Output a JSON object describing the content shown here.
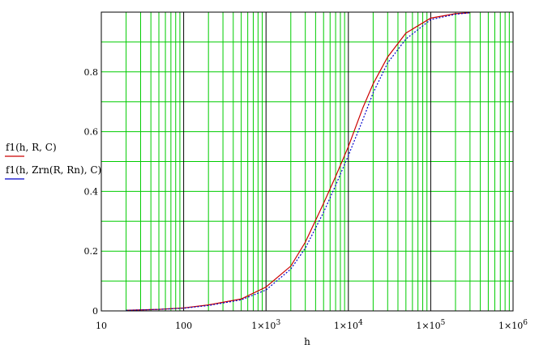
{
  "chart_data": {
    "type": "line",
    "xlabel": "h",
    "x_scale": "log",
    "xlim": [
      10,
      1000000
    ],
    "ylim": [
      0,
      1
    ],
    "grid": true,
    "x_ticks": [
      {
        "value": 10,
        "label": "10",
        "exp": ""
      },
      {
        "value": 100,
        "label": "100",
        "exp": ""
      },
      {
        "value": 1000,
        "label": "1×10",
        "exp": "3"
      },
      {
        "value": 10000,
        "label": "1×10",
        "exp": "4"
      },
      {
        "value": 100000,
        "label": "1×10",
        "exp": "5"
      },
      {
        "value": 1000000,
        "label": "1×10",
        "exp": "6"
      }
    ],
    "y_ticks": [
      {
        "value": 0,
        "label": "0"
      },
      {
        "value": 0.2,
        "label": "0.2"
      },
      {
        "value": 0.4,
        "label": "0.4"
      },
      {
        "value": 0.6,
        "label": "0.6"
      },
      {
        "value": 0.8,
        "label": "0.8"
      }
    ],
    "legend_placement": "left",
    "colors": {
      "grid_minor": "#00cc00",
      "grid_decade": "#000000",
      "frame": "#000000"
    },
    "series": [
      {
        "name": "f1(h, R, C)",
        "color": "#cc0000",
        "style": "solid",
        "x": [
          20,
          50,
          100,
          200,
          500,
          1000,
          2000,
          3000,
          5000,
          7000,
          10000,
          15000,
          20000,
          30000,
          50000,
          100000,
          200000,
          300000
        ],
        "y": [
          0.002,
          0.005,
          0.01,
          0.02,
          0.04,
          0.08,
          0.15,
          0.23,
          0.36,
          0.45,
          0.55,
          0.68,
          0.76,
          0.85,
          0.93,
          0.98,
          0.995,
          0.998
        ]
      },
      {
        "name": "f1(h, Zrn(R, Rn), C)",
        "color": "#0000cc",
        "style": "dotted",
        "x": [
          20,
          50,
          100,
          200,
          500,
          1000,
          2000,
          3000,
          5000,
          7000,
          10000,
          15000,
          20000,
          30000,
          50000,
          100000,
          200000,
          300000
        ],
        "y": [
          0.002,
          0.005,
          0.009,
          0.018,
          0.037,
          0.07,
          0.14,
          0.21,
          0.33,
          0.42,
          0.52,
          0.64,
          0.73,
          0.83,
          0.91,
          0.975,
          0.993,
          0.998
        ]
      }
    ]
  }
}
